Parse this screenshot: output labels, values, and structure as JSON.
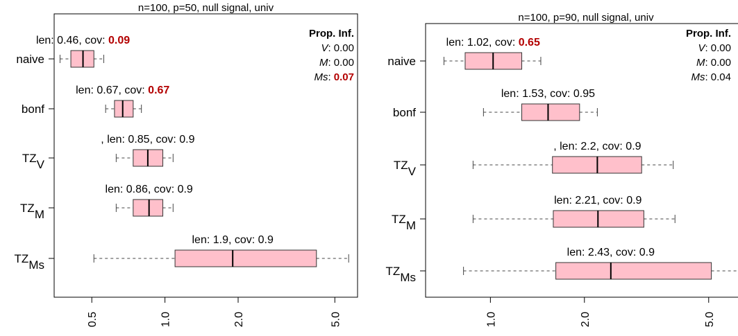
{
  "chart_data": [
    {
      "type": "boxplot",
      "title": "n=100, p=50, null signal, univ",
      "x_scale": "log",
      "xlim": [
        0.35,
        6.2
      ],
      "x_ticks": [
        0.5,
        1.0,
        2.0,
        5.0
      ],
      "x_tick_labels": [
        "0.5",
        "1.0",
        "2.0",
        "5.0"
      ],
      "legend": {
        "title": "Prop. Inf.",
        "rows": [
          {
            "label": "V",
            "value": "0.00",
            "highlight": false
          },
          {
            "label": "M",
            "value": "0.00",
            "highlight": false
          },
          {
            "label": "Ms",
            "value": "0.07",
            "highlight": true
          }
        ]
      },
      "series": [
        {
          "name": "naive",
          "sub": "",
          "whisker_low": 0.37,
          "q1": 0.41,
          "median": 0.46,
          "q3": 0.51,
          "whisker_high": 0.56,
          "ann_text": "len: 0.46, cov: ",
          "ann_cov": "0.09",
          "ann_cov_highlight": true
        },
        {
          "name": "bonf",
          "sub": "",
          "whisker_low": 0.57,
          "q1": 0.62,
          "median": 0.67,
          "q3": 0.74,
          "whisker_high": 0.8,
          "ann_text": "len: 0.67, cov: ",
          "ann_cov": "0.67",
          "ann_cov_highlight": true
        },
        {
          "name": "TZ",
          "sub": "V",
          "whisker_low": 0.63,
          "q1": 0.74,
          "median": 0.85,
          "q3": 0.98,
          "whisker_high": 1.08,
          "ann_text": ", len: 0.85, cov: 0.9",
          "ann_cov": "",
          "ann_cov_highlight": false
        },
        {
          "name": "TZ",
          "sub": "M",
          "whisker_low": 0.63,
          "q1": 0.74,
          "median": 0.86,
          "q3": 0.98,
          "whisker_high": 1.08,
          "ann_text": "len: 0.86, cov: 0.9",
          "ann_cov": "",
          "ann_cov_highlight": false
        },
        {
          "name": "TZ",
          "sub": "Ms",
          "whisker_low": 0.51,
          "q1": 1.1,
          "median": 1.9,
          "q3": 4.2,
          "whisker_high": 5.7,
          "ann_text": "len: 1.9, cov: 0.9",
          "ann_cov": "",
          "ann_cov_highlight": false
        }
      ]
    },
    {
      "type": "boxplot",
      "title": "n=100, p=90, null signal, univ",
      "x_scale": "log",
      "xlim": [
        0.62,
        6.6
      ],
      "x_ticks": [
        1.0,
        2.0,
        5.0
      ],
      "x_tick_labels": [
        "1.0",
        "2.0",
        "5.0"
      ],
      "legend": {
        "title": "Prop. Inf.",
        "rows": [
          {
            "label": "V",
            "value": "0.00",
            "highlight": false
          },
          {
            "label": "M",
            "value": "0.00",
            "highlight": false
          },
          {
            "label": "Ms",
            "value": "0.04",
            "highlight": false
          }
        ]
      },
      "series": [
        {
          "name": "naive",
          "sub": "",
          "whisker_low": 0.71,
          "q1": 0.83,
          "median": 1.02,
          "q3": 1.26,
          "whisker_high": 1.45,
          "ann_text": "len: 1.02, cov: ",
          "ann_cov": "0.65",
          "ann_cov_highlight": true
        },
        {
          "name": "bonf",
          "sub": "",
          "whisker_low": 0.95,
          "q1": 1.26,
          "median": 1.53,
          "q3": 1.93,
          "whisker_high": 2.2,
          "ann_text": "len: 1.53, cov: 0.95",
          "ann_cov": "",
          "ann_cov_highlight": false
        },
        {
          "name": "TZ",
          "sub": "V",
          "whisker_low": 0.88,
          "q1": 1.58,
          "median": 2.2,
          "q3": 3.05,
          "whisker_high": 3.85,
          "ann_text": ", len: 2.2, cov: 0.9",
          "ann_cov": "",
          "ann_cov_highlight": false
        },
        {
          "name": "TZ",
          "sub": "M",
          "whisker_low": 0.88,
          "q1": 1.59,
          "median": 2.21,
          "q3": 3.1,
          "whisker_high": 3.9,
          "ann_text": "len: 2.21, cov: 0.9",
          "ann_cov": "",
          "ann_cov_highlight": false
        },
        {
          "name": "TZ",
          "sub": "Ms",
          "whisker_low": 0.82,
          "q1": 1.62,
          "median": 2.43,
          "q3": 5.1,
          "whisker_high": 6.4,
          "ann_text": "len: 2.43, cov: 0.9",
          "ann_cov": "",
          "ann_cov_highlight": false
        }
      ]
    }
  ],
  "colors": {
    "box_fill": "#ffc0cb",
    "box_stroke": "#333333",
    "highlight": "#b30000",
    "axis": "#000000"
  }
}
